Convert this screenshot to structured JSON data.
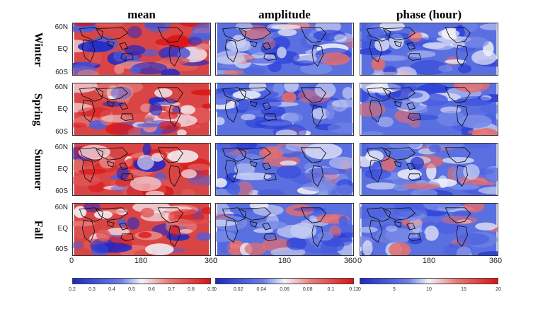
{
  "columns": [
    "mean",
    "amplitude",
    "phase (hour)"
  ],
  "rows": [
    "Winter",
    "Spring",
    "Summer",
    "Fall"
  ],
  "lat_labels": [
    "60N",
    "EQ",
    "60S"
  ],
  "x_ticks": [
    "0",
    "180",
    "360"
  ],
  "colorbars": [
    {
      "ticks": [
        "0.2",
        "0.3",
        "0.4",
        "0.5",
        "0.6",
        "0.7",
        "0.8",
        "0.9"
      ]
    },
    {
      "ticks": [
        "0",
        "0.02",
        "0.04",
        "0.06",
        "0.08",
        "0.1",
        "0.12"
      ]
    },
    {
      "ticks": [
        "0",
        "5",
        "10",
        "15",
        "20"
      ]
    }
  ],
  "colors": {
    "low": "#1d28c9",
    "mid": "#f3f3f8",
    "high": "#db1313"
  }
}
